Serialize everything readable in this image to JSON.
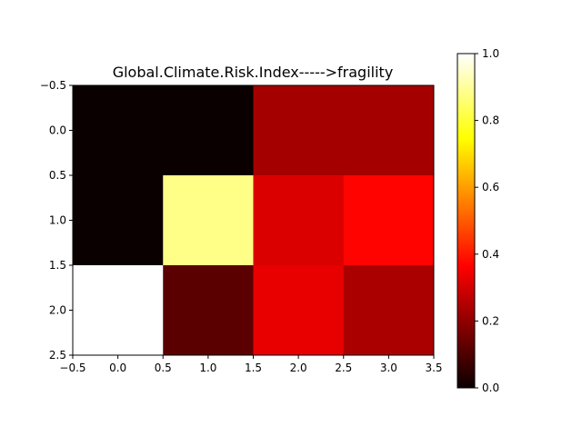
{
  "chart_data": {
    "type": "heatmap",
    "title": "Global.Climate.Risk.Index----->fragility",
    "xlabel": "",
    "ylabel": "",
    "colormap": "hot",
    "vmin": 0.0,
    "vmax": 1.0,
    "xlim": [
      -0.5,
      3.5
    ],
    "ylim": [
      2.5,
      -0.5
    ],
    "x_ticks": [
      "−0.5",
      "0.0",
      "0.5",
      "1.0",
      "1.5",
      "2.0",
      "2.5",
      "3.0",
      "3.5"
    ],
    "y_ticks": [
      "−0.5",
      "0.0",
      "0.5",
      "1.0",
      "1.5",
      "2.0",
      "2.5"
    ],
    "colorbar_ticks": [
      "0.0",
      "0.2",
      "0.4",
      "0.6",
      "0.8",
      "1.0"
    ],
    "grid": false,
    "values": [
      [
        0.0,
        0.0,
        0.23,
        0.23
      ],
      [
        0.0,
        0.88,
        0.31,
        0.37
      ],
      [
        1.0,
        0.12,
        0.33,
        0.24
      ]
    ]
  }
}
